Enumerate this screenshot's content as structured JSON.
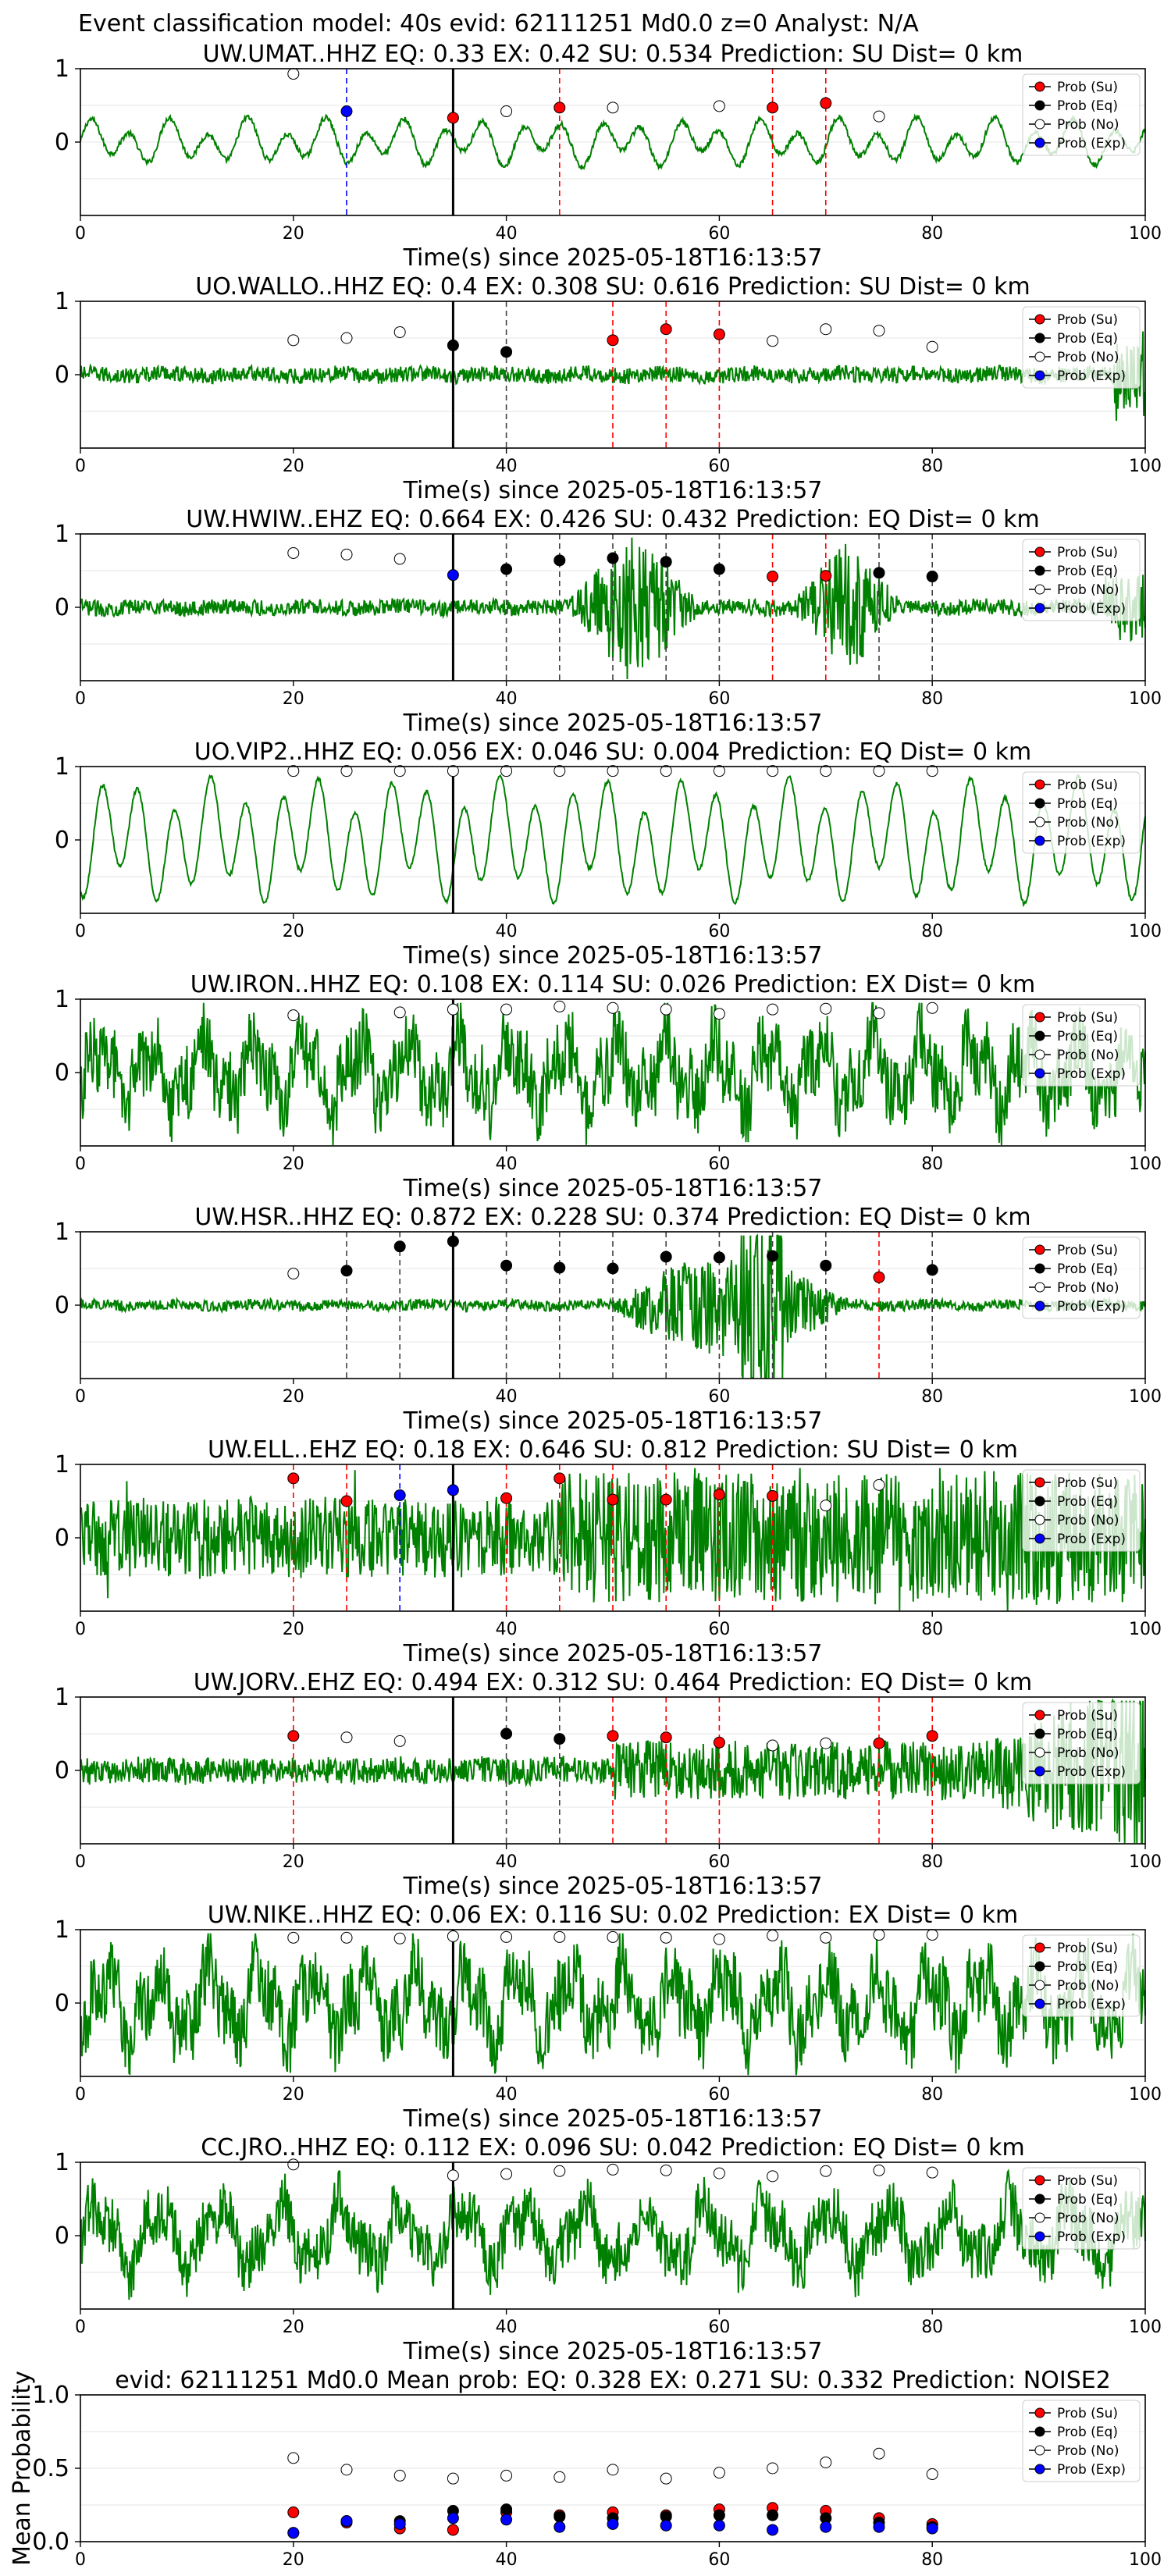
{
  "suptitle": "Event classification model: 40s evid: 62111251 Md0.0 z=0 Analyst: N/A",
  "colors": {
    "trace": "#008000",
    "su": "#ff0000",
    "eq": "#000000",
    "no": "#ffffff",
    "exp": "#0000ff",
    "su_line": "#ff0000",
    "eq_line": "#404040",
    "exp_line": "#0000ff",
    "onset_line": "#000000"
  },
  "legend": [
    "Prob (Su)",
    "Prob (Eq)",
    "Prob (No)",
    "Prob (Exp)"
  ],
  "chart_data": [
    {
      "type": "line",
      "title": "UW.UMAT..HHZ   EQ: 0.33  EX: 0.42  SU: 0.534   Prediction: SU    Dist= 0 km",
      "xlabel": "Time(s) since 2025-05-18T16:13:57",
      "ylabel": "",
      "xlim": [
        0,
        100
      ],
      "ylim": [
        -1,
        1
      ],
      "xticks": [
        "0",
        "20",
        "40",
        "60",
        "80",
        "100"
      ],
      "yticks": [
        "1",
        "0"
      ],
      "onset": 35,
      "style": "low",
      "legend_placement": "top-right",
      "series": [
        {
          "name": "Prob (Su)",
          "x": [
            35,
            45,
            65,
            70
          ],
          "y": [
            0.33,
            0.47,
            0.47,
            0.53
          ]
        },
        {
          "name": "Prob (Eq)",
          "x": [],
          "y": []
        },
        {
          "name": "Prob (No)",
          "x": [
            20,
            40,
            50,
            60,
            75
          ],
          "y": [
            0.93,
            0.42,
            0.47,
            0.49,
            0.35
          ]
        },
        {
          "name": "Prob (Exp)",
          "x": [
            25
          ],
          "y": [
            0.42
          ]
        }
      ]
    },
    {
      "type": "line",
      "title": "UO.WALLO..HHZ   EQ: 0.4  EX: 0.308  SU: 0.616   Prediction: SU    Dist= 0 km",
      "xlabel": "Time(s) since 2025-05-18T16:13:57",
      "ylabel": "",
      "xlim": [
        0,
        100
      ],
      "ylim": [
        -1,
        1
      ],
      "xticks": [
        "0",
        "20",
        "40",
        "60",
        "80",
        "100"
      ],
      "yticks": [
        "1",
        "0"
      ],
      "onset": 35,
      "style": "noise",
      "legend_placement": "top-right",
      "series": [
        {
          "name": "Prob (Su)",
          "x": [
            50,
            55,
            60
          ],
          "y": [
            0.47,
            0.62,
            0.55
          ]
        },
        {
          "name": "Prob (Eq)",
          "x": [
            35,
            40
          ],
          "y": [
            0.4,
            0.31
          ]
        },
        {
          "name": "Prob (No)",
          "x": [
            20,
            25,
            30,
            65,
            70,
            75,
            80
          ],
          "y": [
            0.47,
            0.5,
            0.58,
            0.46,
            0.62,
            0.6,
            0.38
          ]
        },
        {
          "name": "Prob (Exp)",
          "x": [],
          "y": []
        }
      ]
    },
    {
      "type": "line",
      "title": "UW.HWIW..EHZ   EQ: 0.664  EX: 0.426  SU: 0.432   Prediction: EQ    Dist= 0 km",
      "xlabel": "Time(s) since 2025-05-18T16:13:57",
      "ylabel": "",
      "xlim": [
        0,
        100
      ],
      "ylim": [
        -1,
        1
      ],
      "xticks": [
        "0",
        "20",
        "40",
        "60",
        "80",
        "100"
      ],
      "yticks": [
        "1",
        "0"
      ],
      "onset": 35,
      "style": "burst",
      "legend_placement": "top-right",
      "series": [
        {
          "name": "Prob (Su)",
          "x": [
            65,
            70
          ],
          "y": [
            0.42,
            0.43
          ]
        },
        {
          "name": "Prob (Eq)",
          "x": [
            40,
            45,
            50,
            55,
            60,
            75,
            80
          ],
          "y": [
            0.52,
            0.64,
            0.67,
            0.62,
            0.52,
            0.47,
            0.42
          ]
        },
        {
          "name": "Prob (No)",
          "x": [
            20,
            25,
            30
          ],
          "y": [
            0.74,
            0.72,
            0.66
          ]
        },
        {
          "name": "Prob (Exp)",
          "x": [
            35
          ],
          "y": [
            0.44
          ]
        }
      ]
    },
    {
      "type": "line",
      "title": "UO.VIP2..HHZ   EQ: 0.056  EX: 0.046  SU: 0.004   Prediction: EQ    Dist= 0 km",
      "xlabel": "Time(s) since 2025-05-18T16:13:57",
      "ylabel": "",
      "xlim": [
        0,
        100
      ],
      "ylim": [
        -1,
        1
      ],
      "xticks": [
        "0",
        "20",
        "40",
        "60",
        "80",
        "100"
      ],
      "yticks": [
        "1",
        "0"
      ],
      "onset": 35,
      "style": "smooth",
      "legend_placement": "top-right",
      "series": [
        {
          "name": "Prob (Su)",
          "x": [],
          "y": []
        },
        {
          "name": "Prob (Eq)",
          "x": [],
          "y": []
        },
        {
          "name": "Prob (No)",
          "x": [
            20,
            25,
            30,
            35,
            40,
            45,
            50,
            55,
            60,
            65,
            70,
            75,
            80
          ],
          "y": [
            0.94,
            0.94,
            0.94,
            0.94,
            0.94,
            0.94,
            0.94,
            0.94,
            0.94,
            0.94,
            0.94,
            0.94,
            0.94
          ]
        },
        {
          "name": "Prob (Exp)",
          "x": [],
          "y": []
        }
      ]
    },
    {
      "type": "line",
      "title": "UW.IRON..HHZ   EQ: 0.108  EX: 0.114  SU: 0.026   Prediction: EX    Dist= 0 km",
      "xlabel": "Time(s) since 2025-05-18T16:13:57",
      "ylabel": "",
      "xlim": [
        0,
        100
      ],
      "ylim": [
        -1,
        1
      ],
      "xticks": [
        "0",
        "20",
        "40",
        "60",
        "80",
        "100"
      ],
      "yticks": [
        "1",
        "0"
      ],
      "onset": 35,
      "style": "busy",
      "legend_placement": "top-right",
      "series": [
        {
          "name": "Prob (Su)",
          "x": [],
          "y": []
        },
        {
          "name": "Prob (Eq)",
          "x": [],
          "y": []
        },
        {
          "name": "Prob (No)",
          "x": [
            20,
            30,
            35,
            40,
            45,
            50,
            55,
            60,
            65,
            70,
            75,
            80
          ],
          "y": [
            0.78,
            0.82,
            0.86,
            0.86,
            0.9,
            0.88,
            0.86,
            0.8,
            0.86,
            0.87,
            0.81,
            0.88
          ]
        },
        {
          "name": "Prob (Exp)",
          "x": [],
          "y": []
        }
      ]
    },
    {
      "type": "line",
      "title": "UW.HSR..HHZ   EQ: 0.872  EX: 0.228  SU: 0.374   Prediction: EQ    Dist= 0 km",
      "xlabel": "Time(s) since 2025-05-18T16:13:57",
      "ylabel": "",
      "xlim": [
        0,
        100
      ],
      "ylim": [
        -1,
        1
      ],
      "xticks": [
        "0",
        "20",
        "40",
        "60",
        "80",
        "100"
      ],
      "yticks": [
        "1",
        "0"
      ],
      "onset": 35,
      "style": "quake",
      "legend_placement": "top-right",
      "series": [
        {
          "name": "Prob (Su)",
          "x": [
            75
          ],
          "y": [
            0.38
          ]
        },
        {
          "name": "Prob (Eq)",
          "x": [
            25,
            30,
            35,
            40,
            45,
            50,
            55,
            60,
            65,
            70,
            80
          ],
          "y": [
            0.47,
            0.8,
            0.87,
            0.54,
            0.51,
            0.5,
            0.66,
            0.65,
            0.67,
            0.54,
            0.48
          ]
        },
        {
          "name": "Prob (No)",
          "x": [
            20
          ],
          "y": [
            0.43
          ]
        },
        {
          "name": "Prob (Exp)",
          "x": [],
          "y": []
        }
      ]
    },
    {
      "type": "line",
      "title": "UW.ELL..EHZ   EQ: 0.18  EX: 0.646  SU: 0.812   Prediction: SU    Dist= 0 km",
      "xlabel": "Time(s) since 2025-05-18T16:13:57",
      "ylabel": "",
      "xlim": [
        0,
        100
      ],
      "ylim": [
        -1,
        1
      ],
      "xticks": [
        "0",
        "20",
        "40",
        "60",
        "80",
        "100"
      ],
      "yticks": [
        "1",
        "0"
      ],
      "onset": 35,
      "style": "spiky",
      "legend_placement": "top-right",
      "series": [
        {
          "name": "Prob (Su)",
          "x": [
            20,
            25,
            40,
            45,
            50,
            55,
            60,
            65
          ],
          "y": [
            0.81,
            0.5,
            0.54,
            0.81,
            0.52,
            0.52,
            0.59,
            0.57
          ]
        },
        {
          "name": "Prob (Eq)",
          "x": [],
          "y": []
        },
        {
          "name": "Prob (No)",
          "x": [
            70,
            75
          ],
          "y": [
            0.44,
            0.72
          ]
        },
        {
          "name": "Prob (Exp)",
          "x": [
            30,
            35
          ],
          "y": [
            0.58,
            0.65
          ]
        }
      ]
    },
    {
      "type": "line",
      "title": "UW.JORV..EHZ   EQ: 0.494  EX: 0.312  SU: 0.464   Prediction: EQ    Dist= 0 km",
      "xlabel": "Time(s) since 2025-05-18T16:13:57",
      "ylabel": "",
      "xlim": [
        0,
        100
      ],
      "ylim": [
        -1,
        1
      ],
      "xticks": [
        "0",
        "20",
        "40",
        "60",
        "80",
        "100"
      ],
      "yticks": [
        "1",
        "0"
      ],
      "onset": 35,
      "style": "growing",
      "legend_placement": "top-right",
      "series": [
        {
          "name": "Prob (Su)",
          "x": [
            20,
            50,
            55,
            60,
            75,
            80
          ],
          "y": [
            0.47,
            0.47,
            0.45,
            0.38,
            0.37,
            0.47
          ]
        },
        {
          "name": "Prob (Eq)",
          "x": [
            40,
            45
          ],
          "y": [
            0.5,
            0.43
          ]
        },
        {
          "name": "Prob (No)",
          "x": [
            25,
            30,
            65,
            70
          ],
          "y": [
            0.45,
            0.4,
            0.34,
            0.37
          ]
        },
        {
          "name": "Prob (Exp)",
          "x": [],
          "y": []
        }
      ]
    },
    {
      "type": "line",
      "title": "UW.NIKE..HHZ   EQ: 0.06  EX: 0.116  SU: 0.02   Prediction: EX    Dist= 0 km",
      "xlabel": "Time(s) since 2025-05-18T16:13:57",
      "ylabel": "",
      "xlim": [
        0,
        100
      ],
      "ylim": [
        -1,
        1
      ],
      "xticks": [
        "0",
        "20",
        "40",
        "60",
        "80",
        "100"
      ],
      "yticks": [
        "1",
        "0"
      ],
      "onset": 35,
      "style": "busy",
      "legend_placement": "top-right",
      "series": [
        {
          "name": "Prob (Su)",
          "x": [],
          "y": []
        },
        {
          "name": "Prob (Eq)",
          "x": [],
          "y": []
        },
        {
          "name": "Prob (No)",
          "x": [
            20,
            25,
            30,
            35,
            40,
            45,
            50,
            55,
            60,
            65,
            70,
            75,
            80
          ],
          "y": [
            0.89,
            0.89,
            0.88,
            0.91,
            0.9,
            0.9,
            0.9,
            0.89,
            0.87,
            0.92,
            0.89,
            0.93,
            0.93
          ]
        },
        {
          "name": "Prob (Exp)",
          "x": [],
          "y": []
        }
      ]
    },
    {
      "type": "line",
      "title": "CC.JRO..HHZ   EQ: 0.112  EX: 0.096  SU: 0.042   Prediction: EQ    Dist= 0 km",
      "xlabel": "Time(s) since 2025-05-18T16:13:57",
      "ylabel": "",
      "xlim": [
        0,
        100
      ],
      "ylim": [
        -1,
        1
      ],
      "xticks": [
        "0",
        "20",
        "40",
        "60",
        "80",
        "100"
      ],
      "yticks": [
        "1",
        "0"
      ],
      "onset": 35,
      "style": "medium",
      "legend_placement": "top-right",
      "series": [
        {
          "name": "Prob (Su)",
          "x": [],
          "y": []
        },
        {
          "name": "Prob (Eq)",
          "x": [],
          "y": []
        },
        {
          "name": "Prob (No)",
          "x": [
            20,
            35,
            40,
            45,
            50,
            55,
            60,
            65,
            70,
            75,
            80
          ],
          "y": [
            0.97,
            0.82,
            0.84,
            0.88,
            0.9,
            0.89,
            0.85,
            0.81,
            0.88,
            0.89,
            0.86
          ]
        },
        {
          "name": "Prob (Exp)",
          "x": [],
          "y": []
        }
      ]
    },
    {
      "type": "scatter",
      "title": "evid: 62111251  Md0.0   Mean prob:   EQ: 0.328  EX: 0.271  SU: 0.332   Prediction: NOISE2",
      "xlabel": "",
      "ylabel": "Mean Probability",
      "xlim": [
        0,
        100
      ],
      "ylim": [
        0,
        1
      ],
      "xticks": [
        "0",
        "20",
        "40",
        "60",
        "80",
        "100"
      ],
      "yticks": [
        "1.0",
        "0.5",
        "0.0"
      ],
      "onset": null,
      "style": "none",
      "legend_placement": "top-right",
      "series": [
        {
          "name": "Prob (Su)",
          "x": [
            20,
            25,
            30,
            35,
            40,
            45,
            50,
            55,
            60,
            65,
            70,
            75,
            80
          ],
          "y": [
            0.2,
            0.13,
            0.09,
            0.08,
            0.2,
            0.18,
            0.2,
            0.18,
            0.22,
            0.23,
            0.21,
            0.16,
            0.12
          ]
        },
        {
          "name": "Prob (Eq)",
          "x": [
            20,
            25,
            30,
            35,
            40,
            45,
            50,
            55,
            60,
            65,
            70,
            75,
            80
          ],
          "y": [
            0.06,
            0.14,
            0.14,
            0.21,
            0.22,
            0.17,
            0.16,
            0.17,
            0.18,
            0.18,
            0.16,
            0.13,
            0.1
          ]
        },
        {
          "name": "Prob (No)",
          "x": [
            20,
            25,
            30,
            35,
            40,
            45,
            50,
            55,
            60,
            65,
            70,
            75,
            80
          ],
          "y": [
            0.57,
            0.49,
            0.45,
            0.43,
            0.45,
            0.44,
            0.49,
            0.43,
            0.47,
            0.5,
            0.54,
            0.6,
            0.46
          ]
        },
        {
          "name": "Prob (Exp)",
          "x": [
            20,
            25,
            30,
            35,
            40,
            45,
            50,
            55,
            60,
            65,
            70,
            75,
            80
          ],
          "y": [
            0.06,
            0.14,
            0.12,
            0.16,
            0.15,
            0.1,
            0.12,
            0.11,
            0.11,
            0.08,
            0.1,
            0.1,
            0.09
          ]
        }
      ]
    }
  ]
}
